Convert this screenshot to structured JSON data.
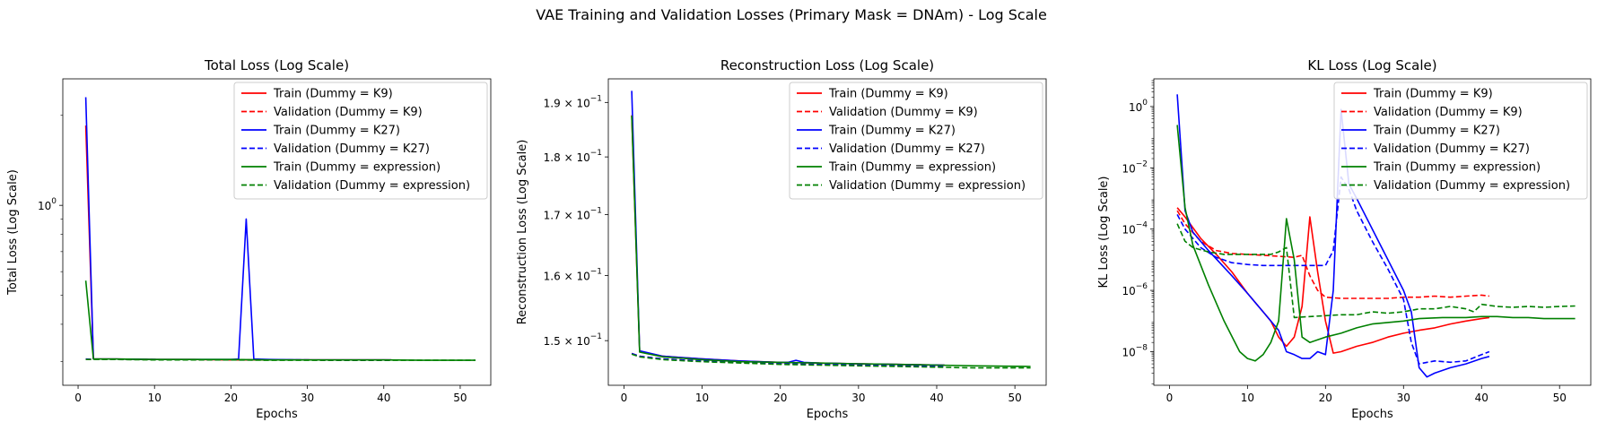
{
  "figure": {
    "suptitle": "VAE Training and Validation Losses (Primary Mask = DNAm) - Log Scale"
  },
  "series_colors": {
    "K9": "#ff0000",
    "K27": "#0000ff",
    "expression": "#008000"
  },
  "chart_data": [
    {
      "type": "line",
      "title": "Total Loss (Log Scale)",
      "xlabel": "Epochs",
      "ylabel": "Total Loss (Log Scale)",
      "yscale": "log",
      "xlim": [
        -2,
        54
      ],
      "ylim": [
        0.25,
        2.65
      ],
      "x_ticks": [
        0,
        10,
        20,
        30,
        40,
        50
      ],
      "y_ticks": [
        {
          "value": 1.0,
          "base": "10",
          "exp": "0"
        }
      ],
      "legend": "upper-right",
      "series": [
        {
          "name": "Train (Dummy = K9)",
          "key": "K9",
          "style": "solid",
          "x": [
            1,
            2,
            3,
            5,
            10,
            15,
            20,
            25,
            30,
            35,
            41
          ],
          "y": [
            1.85,
            0.306,
            0.306,
            0.306,
            0.305,
            0.305,
            0.304,
            0.304,
            0.304,
            0.304,
            0.304
          ]
        },
        {
          "name": "Validation (Dummy = K9)",
          "key": "K9",
          "style": "dashed",
          "x": [
            1,
            2,
            5,
            10,
            15,
            20,
            25,
            30,
            35,
            41
          ],
          "y": [
            0.306,
            0.305,
            0.305,
            0.305,
            0.304,
            0.304,
            0.304,
            0.304,
            0.303,
            0.303
          ]
        },
        {
          "name": "Train (Dummy = K27)",
          "key": "K27",
          "style": "solid",
          "x": [
            1,
            2,
            3,
            5,
            10,
            15,
            20,
            21,
            22,
            23,
            25,
            30,
            35,
            41
          ],
          "y": [
            2.3,
            0.306,
            0.306,
            0.306,
            0.305,
            0.305,
            0.305,
            0.306,
            0.9,
            0.306,
            0.305,
            0.304,
            0.304,
            0.304
          ]
        },
        {
          "name": "Validation (Dummy = K27)",
          "key": "K27",
          "style": "dashed",
          "x": [
            1,
            2,
            5,
            10,
            15,
            20,
            25,
            30,
            35,
            41
          ],
          "y": [
            0.306,
            0.305,
            0.305,
            0.305,
            0.304,
            0.304,
            0.304,
            0.304,
            0.303,
            0.303
          ]
        },
        {
          "name": "Train (Dummy = expression)",
          "key": "expression",
          "style": "solid",
          "x": [
            1,
            2,
            3,
            5,
            10,
            15,
            20,
            25,
            30,
            35,
            40,
            45,
            52
          ],
          "y": [
            0.56,
            0.306,
            0.306,
            0.306,
            0.305,
            0.305,
            0.305,
            0.304,
            0.304,
            0.304,
            0.304,
            0.303,
            0.303
          ]
        },
        {
          "name": "Validation (Dummy = expression)",
          "key": "expression",
          "style": "dashed",
          "x": [
            1,
            2,
            5,
            10,
            15,
            20,
            25,
            30,
            35,
            40,
            45,
            52
          ],
          "y": [
            0.305,
            0.305,
            0.305,
            0.304,
            0.304,
            0.304,
            0.303,
            0.303,
            0.303,
            0.303,
            0.303,
            0.303
          ]
        }
      ]
    },
    {
      "type": "line",
      "title": "Reconstruction Loss (Log Scale)",
      "xlabel": "Epochs",
      "ylabel": "Reconstruction Loss (Log Scale)",
      "yscale": "log",
      "xlim": [
        -2,
        54
      ],
      "ylim": [
        0.1435,
        0.1945
      ],
      "x_ticks": [
        0,
        10,
        20,
        30,
        40,
        50
      ],
      "y_ticks": [
        {
          "value": 0.15,
          "mant": "1.5",
          "base": "10",
          "exp": "−1"
        },
        {
          "value": 0.16,
          "mant": "1.6",
          "base": "10",
          "exp": "−1"
        },
        {
          "value": 0.17,
          "mant": "1.7",
          "base": "10",
          "exp": "−1"
        },
        {
          "value": 0.18,
          "mant": "1.8",
          "base": "10",
          "exp": "−1"
        },
        {
          "value": 0.19,
          "mant": "1.9",
          "base": "10",
          "exp": "−1"
        }
      ],
      "legend": "upper-right",
      "series": [
        {
          "name": "Train (Dummy = K9)",
          "key": "K9",
          "style": "solid",
          "x": [
            1,
            2,
            5,
            10,
            15,
            20,
            25,
            30,
            35,
            41
          ],
          "y": [
            0.1876,
            0.1484,
            0.1477,
            0.1473,
            0.147,
            0.1468,
            0.1467,
            0.1466,
            0.1465,
            0.1464
          ]
        },
        {
          "name": "Validation (Dummy = K9)",
          "key": "K9",
          "style": "dashed",
          "x": [
            1,
            2,
            5,
            10,
            15,
            20,
            25,
            30,
            35,
            41
          ],
          "y": [
            0.1481,
            0.1477,
            0.1473,
            0.147,
            0.1468,
            0.1466,
            0.1465,
            0.1464,
            0.1463,
            0.1462
          ]
        },
        {
          "name": "Train (Dummy = K27)",
          "key": "K27",
          "style": "solid",
          "x": [
            1,
            2,
            5,
            10,
            15,
            20,
            21,
            22,
            23,
            25,
            30,
            35,
            41
          ],
          "y": [
            0.1922,
            0.1485,
            0.1477,
            0.1473,
            0.147,
            0.1468,
            0.1468,
            0.1471,
            0.1468,
            0.1467,
            0.1466,
            0.1465,
            0.1464
          ]
        },
        {
          "name": "Validation (Dummy = K27)",
          "key": "K27",
          "style": "dashed",
          "x": [
            1,
            2,
            5,
            10,
            15,
            20,
            25,
            30,
            35,
            41
          ],
          "y": [
            0.1481,
            0.1477,
            0.1473,
            0.147,
            0.1468,
            0.1466,
            0.1465,
            0.1464,
            0.1463,
            0.1462
          ]
        },
        {
          "name": "Train (Dummy = expression)",
          "key": "expression",
          "style": "solid",
          "x": [
            1,
            2,
            5,
            10,
            15,
            20,
            25,
            30,
            35,
            40,
            45,
            52
          ],
          "y": [
            0.1875,
            0.1483,
            0.1476,
            0.1472,
            0.1469,
            0.1468,
            0.1467,
            0.1466,
            0.1465,
            0.1464,
            0.1463,
            0.1462
          ]
        },
        {
          "name": "Validation (Dummy = expression)",
          "key": "expression",
          "style": "dashed",
          "x": [
            1,
            2,
            5,
            10,
            15,
            20,
            25,
            30,
            35,
            40,
            45,
            52
          ],
          "y": [
            0.148,
            0.1476,
            0.1472,
            0.1469,
            0.1467,
            0.1465,
            0.1464,
            0.1463,
            0.1462,
            0.1461,
            0.146,
            0.146
          ]
        }
      ]
    },
    {
      "type": "line",
      "title": "KL Loss (Log Scale)",
      "xlabel": "Epochs",
      "ylabel": "KL Loss (Log Scale)",
      "yscale": "log",
      "xlim": [
        -2,
        54
      ],
      "ylim": [
        8e-10,
        8
      ],
      "x_ticks": [
        0,
        10,
        20,
        30,
        40,
        50
      ],
      "y_ticks": [
        {
          "value": 1e-08,
          "base": "10",
          "exp": "−8"
        },
        {
          "value": 1e-06,
          "base": "10",
          "exp": "−6"
        },
        {
          "value": 0.0001,
          "base": "10",
          "exp": "−4"
        },
        {
          "value": 0.01,
          "base": "10",
          "exp": "−2"
        },
        {
          "value": 1,
          "base": "10",
          "exp": "0"
        }
      ],
      "legend": "upper-right",
      "series": [
        {
          "name": "Train (Dummy = K9)",
          "key": "K9",
          "style": "solid",
          "x": [
            1,
            2,
            4,
            6,
            8,
            10,
            12,
            13,
            14,
            15,
            16,
            17,
            18,
            19,
            20,
            21,
            22,
            24,
            26,
            28,
            30,
            32,
            34,
            36,
            38,
            40,
            41
          ],
          "y": [
            0.0005,
            0.00025,
            5e-05,
            1.5e-05,
            4e-06,
            8e-07,
            2e-07,
            1e-07,
            3e-08,
            1.5e-08,
            3e-08,
            3e-07,
            0.00025,
            4e-06,
            1e-07,
            9e-09,
            1e-08,
            1.5e-08,
            2e-08,
            3e-08,
            4e-08,
            5e-08,
            6e-08,
            8e-08,
            1e-07,
            1.2e-07,
            1.3e-07
          ]
        },
        {
          "name": "Validation (Dummy = K9)",
          "key": "K9",
          "style": "dashed",
          "x": [
            1,
            2,
            4,
            6,
            8,
            10,
            12,
            14,
            16,
            17,
            18,
            19,
            20,
            22,
            24,
            26,
            28,
            30,
            32,
            34,
            36,
            38,
            40,
            41
          ],
          "y": [
            0.0004,
            0.00015,
            4e-05,
            2e-05,
            1.6e-05,
            1.5e-05,
            1.4e-05,
            1.3e-05,
            1.2e-05,
            1.4e-05,
            3e-06,
            1e-06,
            6e-07,
            5.5e-07,
            5.5e-07,
            5.5e-07,
            5.5e-07,
            6e-07,
            6e-07,
            6.5e-07,
            6e-07,
            6.5e-07,
            7e-07,
            6.5e-07
          ]
        },
        {
          "name": "Train (Dummy = K27)",
          "key": "K27",
          "style": "solid",
          "x": [
            1,
            2,
            3,
            5,
            8,
            10,
            12,
            14,
            15,
            16,
            17,
            18,
            19,
            20,
            21,
            22,
            23,
            24,
            26,
            28,
            30,
            31,
            32,
            33,
            34,
            36,
            38,
            40,
            41
          ],
          "y": [
            2.5,
            0.0004,
            8e-05,
            2e-05,
            3e-06,
            8e-07,
            2e-07,
            5e-08,
            1e-08,
            8e-09,
            6e-09,
            6e-09,
            1e-08,
            8e-09,
            1e-06,
            0.8,
            0.003,
            0.001,
            0.0001,
            1e-05,
            1e-06,
            2e-07,
            3e-09,
            1.5e-09,
            2e-09,
            3e-09,
            4e-09,
            6e-09,
            7e-09
          ]
        },
        {
          "name": "Validation (Dummy = K27)",
          "key": "K27",
          "style": "dashed",
          "x": [
            1,
            2,
            4,
            6,
            8,
            10,
            12,
            15,
            18,
            20,
            21,
            22,
            23,
            24,
            26,
            28,
            30,
            31,
            32,
            34,
            36,
            38,
            40,
            41
          ],
          "y": [
            0.0003,
            0.0001,
            2.5e-05,
            1.2e-05,
            8e-06,
            7e-06,
            6.5e-06,
            6.5e-06,
            6.5e-06,
            6.5e-06,
            2e-05,
            0.005,
            0.002,
            0.0004,
            4e-05,
            5e-06,
            5e-07,
            2e-08,
            4e-09,
            5e-09,
            4.5e-09,
            5e-09,
            8e-09,
            1e-08
          ]
        },
        {
          "name": "Train (Dummy = expression)",
          "key": "expression",
          "style": "solid",
          "x": [
            1,
            2,
            3,
            5,
            7,
            9,
            10,
            11,
            12,
            13,
            14,
            15,
            16,
            17,
            18,
            20,
            22,
            24,
            26,
            28,
            30,
            32,
            35,
            38,
            40,
            42,
            44,
            46,
            48,
            50,
            52
          ],
          "y": [
            0.25,
            0.0005,
            3e-05,
            1.5e-06,
            1e-07,
            1e-08,
            6e-09,
            5e-09,
            8e-09,
            2e-08,
            1e-07,
            0.00022,
            1e-05,
            3e-08,
            2e-08,
            3e-08,
            4e-08,
            6e-08,
            8e-08,
            9e-08,
            1e-07,
            1.2e-07,
            1.3e-07,
            1.3e-07,
            1.4e-07,
            1.4e-07,
            1.3e-07,
            1.3e-07,
            1.2e-07,
            1.2e-07,
            1.2e-07
          ]
        },
        {
          "name": "Validation (Dummy = expression)",
          "key": "expression",
          "style": "dashed",
          "x": [
            1,
            2,
            3,
            5,
            7,
            9,
            11,
            13,
            14,
            15,
            16,
            18,
            20,
            22,
            24,
            26,
            28,
            30,
            32,
            34,
            36,
            38,
            39,
            40,
            42,
            44,
            46,
            48,
            50,
            52
          ],
          "y": [
            0.00015,
            4e-05,
            2.5e-05,
            1.8e-05,
            1.5e-05,
            1.5e-05,
            1.5e-05,
            1.5e-05,
            1.8e-05,
            2.5e-05,
            1.3e-07,
            1.4e-07,
            1.5e-07,
            1.6e-07,
            1.6e-07,
            2e-07,
            1.8e-07,
            2e-07,
            2.5e-07,
            2.5e-07,
            3e-07,
            2.5e-07,
            2e-07,
            3.5e-07,
            3e-07,
            2.8e-07,
            3e-07,
            2.8e-07,
            3e-07,
            3.1e-07
          ]
        }
      ]
    }
  ]
}
